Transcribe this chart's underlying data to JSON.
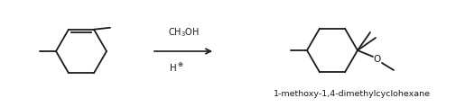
{
  "bg_color": "#ffffff",
  "line_color": "#1a1a1a",
  "text_color": "#1a1a1a",
  "arrow_label_top": "CH$_3$OH",
  "arrow_label_bottom": "H$^\\oplus$",
  "product_label": "1-methoxy-1,4-dimethylcyclohexane",
  "figsize": [
    5.15,
    1.19
  ],
  "dpi": 100
}
